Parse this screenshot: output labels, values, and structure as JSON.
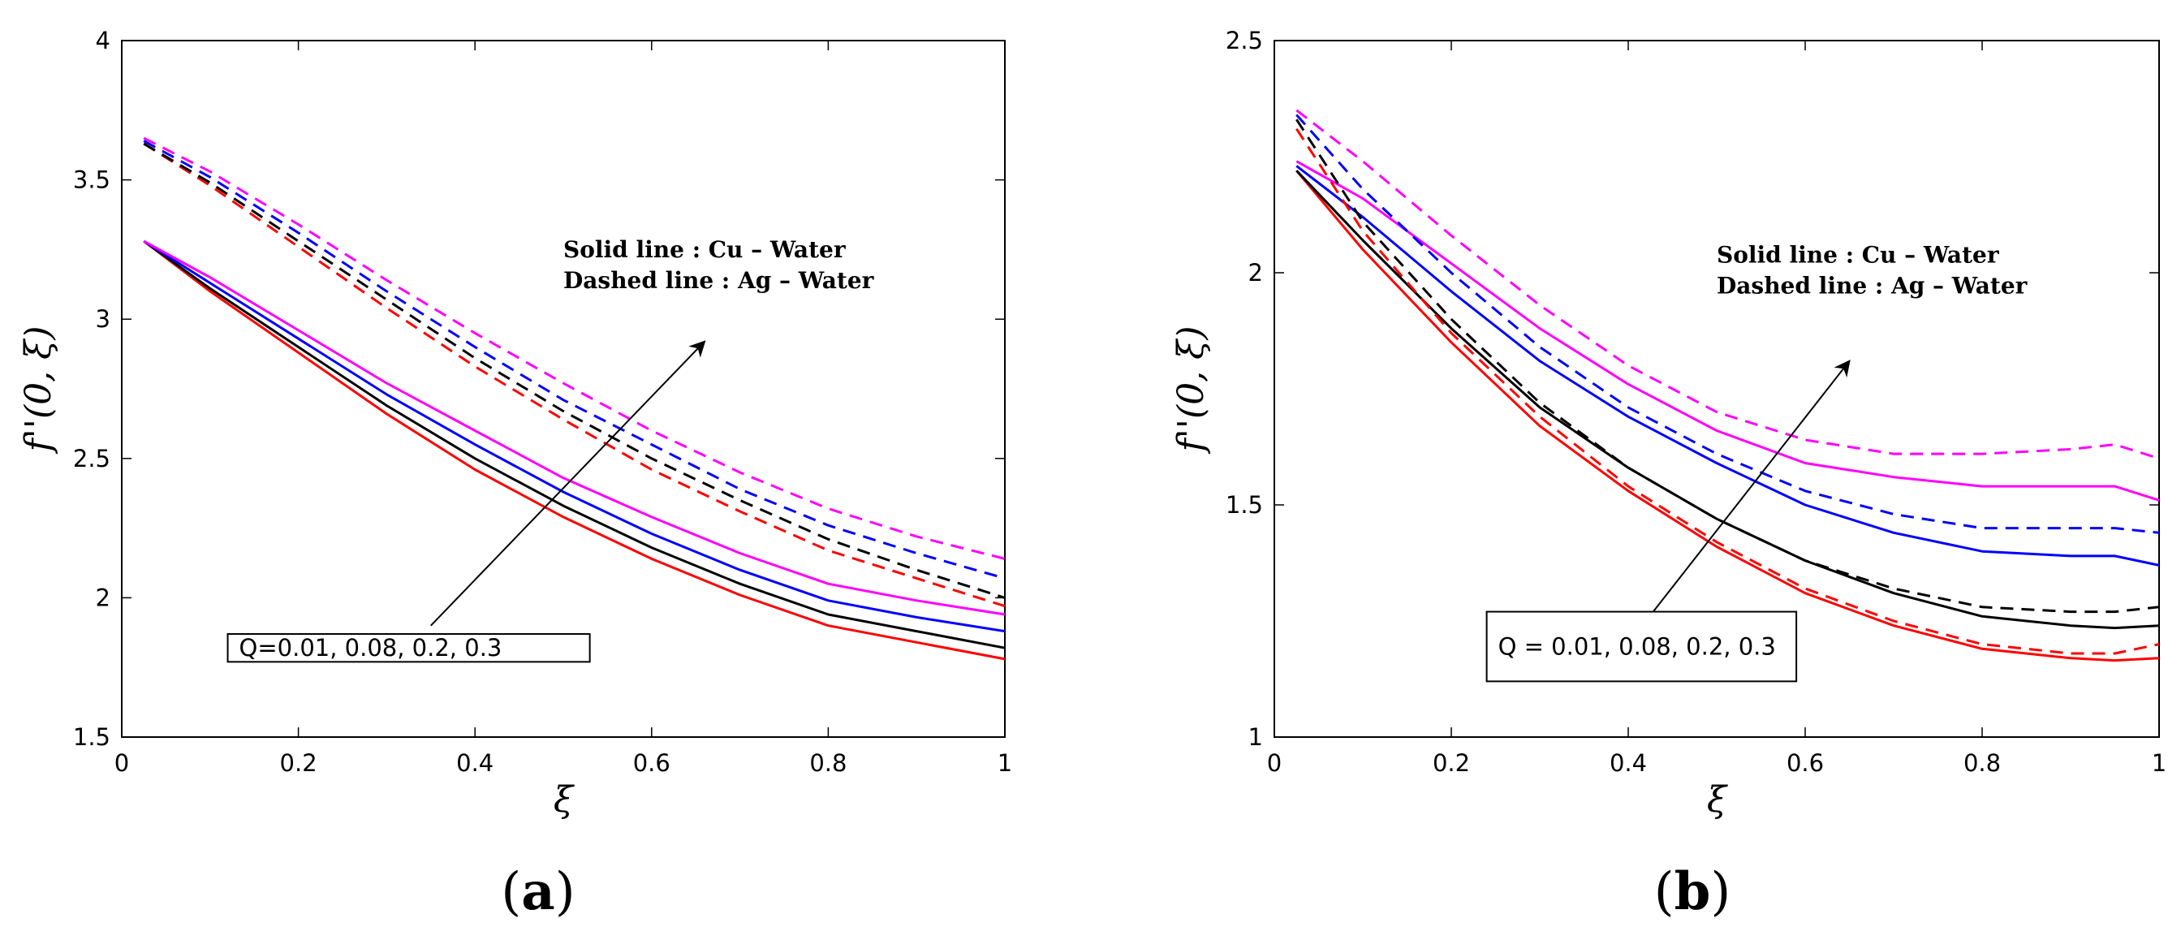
{
  "chart_data": [
    {
      "type": "line",
      "panel_label_open": "(",
      "panel_label_letter": "a",
      "panel_label_close": ")",
      "xlabel": "ξ",
      "ylabel": "f''(0, ξ)",
      "xlim": [
        0,
        1
      ],
      "ylim": [
        1.5,
        4
      ],
      "xticks": [
        "0",
        "0.2",
        "0.4",
        "0.6",
        "0.8",
        "1"
      ],
      "yticks": [
        "1.5",
        "2",
        "2.5",
        "3",
        "3.5",
        "4"
      ],
      "legend_line1": "Solid line : Cu – Water",
      "legend_line2": "Dashed line : Ag – Water",
      "q_label": "Q=0.01, 0.08, 0.2, 0.3",
      "arrow": {
        "from": [
          0.35,
          1.9
        ],
        "to": [
          0.66,
          2.92
        ]
      },
      "text_anchor": [
        0.5,
        3.17
      ],
      "box_anchor": [
        0.12,
        1.87,
        0.53,
        1.77
      ],
      "x": [
        0.025,
        0.1,
        0.2,
        0.3,
        0.4,
        0.5,
        0.6,
        0.7,
        0.8,
        0.9,
        1.0
      ],
      "series": [
        {
          "name": "Cu-Water Q=0.01",
          "color": "#ff0000",
          "dash": false,
          "values": [
            3.28,
            3.1,
            2.88,
            2.66,
            2.46,
            2.29,
            2.14,
            2.01,
            1.9,
            1.84,
            1.78
          ]
        },
        {
          "name": "Cu-Water Q=0.08",
          "color": "#000000",
          "dash": false,
          "values": [
            3.28,
            3.11,
            2.9,
            2.69,
            2.5,
            2.33,
            2.18,
            2.05,
            1.94,
            1.88,
            1.82
          ]
        },
        {
          "name": "Cu-Water Q=0.2",
          "color": "#0000ff",
          "dash": false,
          "values": [
            3.28,
            3.13,
            2.93,
            2.73,
            2.55,
            2.38,
            2.23,
            2.1,
            1.99,
            1.93,
            1.88
          ]
        },
        {
          "name": "Cu-Water Q=0.3",
          "color": "#ff00ff",
          "dash": false,
          "values": [
            3.28,
            3.15,
            2.96,
            2.77,
            2.6,
            2.43,
            2.29,
            2.16,
            2.05,
            1.99,
            1.94
          ]
        },
        {
          "name": "Ag-Water Q=0.01",
          "color": "#ff0000",
          "dash": true,
          "values": [
            3.63,
            3.48,
            3.26,
            3.04,
            2.83,
            2.64,
            2.46,
            2.31,
            2.17,
            2.07,
            1.97
          ]
        },
        {
          "name": "Ag-Water Q=0.08",
          "color": "#000000",
          "dash": true,
          "values": [
            3.63,
            3.49,
            3.28,
            3.07,
            2.86,
            2.67,
            2.5,
            2.35,
            2.21,
            2.1,
            2.0
          ]
        },
        {
          "name": "Ag-Water Q=0.2",
          "color": "#0000ff",
          "dash": true,
          "values": [
            3.64,
            3.51,
            3.31,
            3.1,
            2.9,
            2.71,
            2.55,
            2.39,
            2.26,
            2.16,
            2.07
          ]
        },
        {
          "name": "Ag-Water Q=0.3",
          "color": "#ff00ff",
          "dash": true,
          "values": [
            3.65,
            3.53,
            3.34,
            3.14,
            2.95,
            2.77,
            2.6,
            2.45,
            2.32,
            2.22,
            2.14
          ]
        }
      ]
    },
    {
      "type": "line",
      "panel_label_open": "(",
      "panel_label_letter": "b",
      "panel_label_close": ")",
      "xlabel": "ξ",
      "ylabel": "f''(0, ξ)",
      "xlim": [
        0,
        1
      ],
      "ylim": [
        1,
        2.5
      ],
      "xticks": [
        "0",
        "0.2",
        "0.4",
        "0.6",
        "0.8",
        "1"
      ],
      "yticks": [
        "1",
        "1.5",
        "2",
        "2.5"
      ],
      "legend_line1": "Solid line : Cu – Water",
      "legend_line2": "Dashed line : Ag – Water",
      "q_label": "Q = 0.01, 0.08, 0.2, 0.3",
      "arrow": {
        "from": [
          0.42,
          1.25
        ],
        "to": [
          0.65,
          1.81
        ]
      },
      "text_anchor": [
        0.5,
        1.99
      ],
      "box_anchor": [
        0.24,
        1.27,
        0.59,
        1.12
      ],
      "x": [
        0.025,
        0.1,
        0.2,
        0.3,
        0.4,
        0.5,
        0.6,
        0.7,
        0.8,
        0.9,
        0.95,
        1.0
      ],
      "series": [
        {
          "name": "Cu-Water Q=0.01",
          "color": "#ff0000",
          "dash": false,
          "values": [
            2.22,
            2.05,
            1.85,
            1.67,
            1.53,
            1.41,
            1.31,
            1.24,
            1.19,
            1.17,
            1.165,
            1.17
          ]
        },
        {
          "name": "Cu-Water Q=0.08",
          "color": "#000000",
          "dash": false,
          "values": [
            2.22,
            2.07,
            1.88,
            1.71,
            1.58,
            1.47,
            1.38,
            1.31,
            1.26,
            1.24,
            1.235,
            1.24
          ]
        },
        {
          "name": "Cu-Water Q=0.2",
          "color": "#0000ff",
          "dash": false,
          "values": [
            2.23,
            2.12,
            1.96,
            1.81,
            1.69,
            1.59,
            1.5,
            1.44,
            1.4,
            1.39,
            1.39,
            1.37
          ]
        },
        {
          "name": "Cu-Water Q=0.3",
          "color": "#ff00ff",
          "dash": false,
          "values": [
            2.24,
            2.16,
            2.02,
            1.88,
            1.76,
            1.66,
            1.59,
            1.56,
            1.54,
            1.54,
            1.54,
            1.51
          ]
        },
        {
          "name": "Ag-Water Q=0.01",
          "color": "#ff0000",
          "dash": true,
          "values": [
            2.31,
            2.09,
            1.87,
            1.69,
            1.54,
            1.42,
            1.32,
            1.25,
            1.2,
            1.18,
            1.18,
            1.2
          ]
        },
        {
          "name": "Ag-Water Q=0.08",
          "color": "#000000",
          "dash": true,
          "values": [
            2.33,
            2.11,
            1.9,
            1.72,
            1.58,
            1.47,
            1.38,
            1.32,
            1.28,
            1.27,
            1.27,
            1.28
          ]
        },
        {
          "name": "Ag-Water Q=0.2",
          "color": "#0000ff",
          "dash": true,
          "values": [
            2.34,
            2.18,
            2.0,
            1.84,
            1.71,
            1.61,
            1.53,
            1.48,
            1.45,
            1.45,
            1.45,
            1.44
          ]
        },
        {
          "name": "Ag-Water Q=0.3",
          "color": "#ff00ff",
          "dash": true,
          "values": [
            2.35,
            2.24,
            2.08,
            1.93,
            1.8,
            1.7,
            1.64,
            1.61,
            1.61,
            1.62,
            1.63,
            1.6
          ]
        }
      ]
    }
  ]
}
